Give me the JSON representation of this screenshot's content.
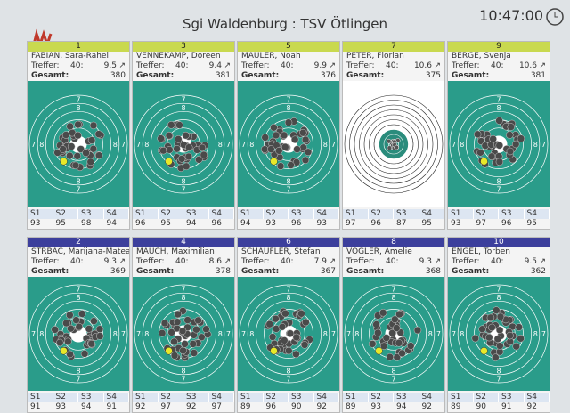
{
  "header": {
    "title": "Sgi Waldenburg : TSV Ötlingen",
    "clock": "10:47:00"
  },
  "labels": {
    "hits": "Treffer:",
    "total": "Gesamt:",
    "series": [
      "S1",
      "S2",
      "S3",
      "S4"
    ]
  },
  "ring_labels": [
    "8",
    "7"
  ],
  "rows": [
    {
      "lane_color": "#c9d94f",
      "lane_text_color": "#222222",
      "panels": [
        {
          "lane": "1",
          "name": "FABIAN, Sara-Rahel",
          "hits": "40:",
          "last": "9.5",
          "total": "380",
          "series": [
            "93",
            "95",
            "98",
            "94"
          ],
          "target": "rifle"
        },
        {
          "lane": "3",
          "name": "VENNEKAMP, Doreen",
          "hits": "40:",
          "last": "9.4",
          "total": "381",
          "series": [
            "96",
            "95",
            "94",
            "96"
          ],
          "target": "rifle"
        },
        {
          "lane": "5",
          "name": "MAULER, Noah",
          "hits": "40:",
          "last": "9.9",
          "total": "376",
          "series": [
            "94",
            "93",
            "96",
            "93"
          ],
          "target": "rifle"
        },
        {
          "lane": "7",
          "name": "PETER, Florian",
          "hits": "40:",
          "last": "10.6",
          "total": "375",
          "series": [
            "97",
            "96",
            "87",
            "95"
          ],
          "target": "rings"
        },
        {
          "lane": "9",
          "name": "BERGE, Svenja",
          "hits": "40:",
          "last": "10.6",
          "total": "381",
          "series": [
            "93",
            "97",
            "96",
            "95"
          ],
          "target": "rifle"
        }
      ]
    },
    {
      "lane_color": "#3c3f9c",
      "lane_text_color": "#ffffff",
      "panels": [
        {
          "lane": "2",
          "name": "STRBAC, Marijana-Matea",
          "hits": "40:",
          "last": "9.3",
          "total": "369",
          "series": [
            "91",
            "93",
            "94",
            "91"
          ],
          "target": "rifle"
        },
        {
          "lane": "4",
          "name": "MAUCH, Maximilian",
          "hits": "40:",
          "last": "8.6",
          "total": "378",
          "series": [
            "92",
            "97",
            "92",
            "97"
          ],
          "target": "rifle"
        },
        {
          "lane": "6",
          "name": "SCHAUFLER, Stefan",
          "hits": "40:",
          "last": "7.9",
          "total": "367",
          "series": [
            "89",
            "96",
            "90",
            "92"
          ],
          "target": "rifle"
        },
        {
          "lane": "8",
          "name": "VOGLER, Amelie",
          "hits": "40:",
          "last": "9.3",
          "total": "368",
          "series": [
            "89",
            "93",
            "94",
            "92"
          ],
          "target": "rifle"
        },
        {
          "lane": "10",
          "name": "ENGEL, Torben",
          "hits": "40:",
          "last": "9.5",
          "total": "362",
          "series": [
            "89",
            "90",
            "91",
            "92"
          ],
          "target": "rifle"
        }
      ]
    }
  ]
}
